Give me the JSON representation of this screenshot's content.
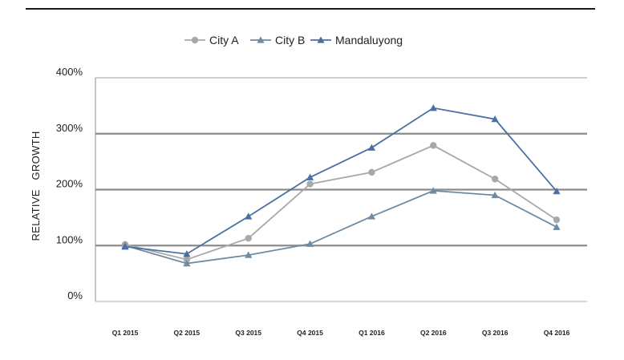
{
  "chart_data": {
    "type": "line",
    "categories": [
      "Q1 2015",
      "Q2 2015",
      "Q3 2015",
      "Q4 2015",
      "Q1 2016",
      "Q2 2016",
      "Q3 2016",
      "Q4 2016"
    ],
    "series": [
      {
        "name": "City A",
        "values": [
          102,
          75,
          113,
          210,
          231,
          279,
          219,
          146
        ],
        "color": "#a8a8a8",
        "marker": "circle"
      },
      {
        "name": "City B",
        "values": [
          100,
          68,
          83,
          103,
          152,
          198,
          190,
          133
        ],
        "color": "#6f8aa3",
        "marker": "triangle"
      },
      {
        "name": "Mandaluyong",
        "values": [
          98,
          85,
          152,
          222,
          275,
          346,
          326,
          197
        ],
        "color": "#4a6fa5",
        "marker": "triangle"
      }
    ],
    "ylabel": "RELATIVE   GROWTH",
    "ylim": [
      0,
      400
    ],
    "yticks": [
      0,
      100,
      200,
      300,
      400
    ],
    "ytick_labels": [
      "0%",
      "100%",
      "200%",
      "300%",
      "400%"
    ],
    "grid": true,
    "legend_position": "top-center"
  }
}
